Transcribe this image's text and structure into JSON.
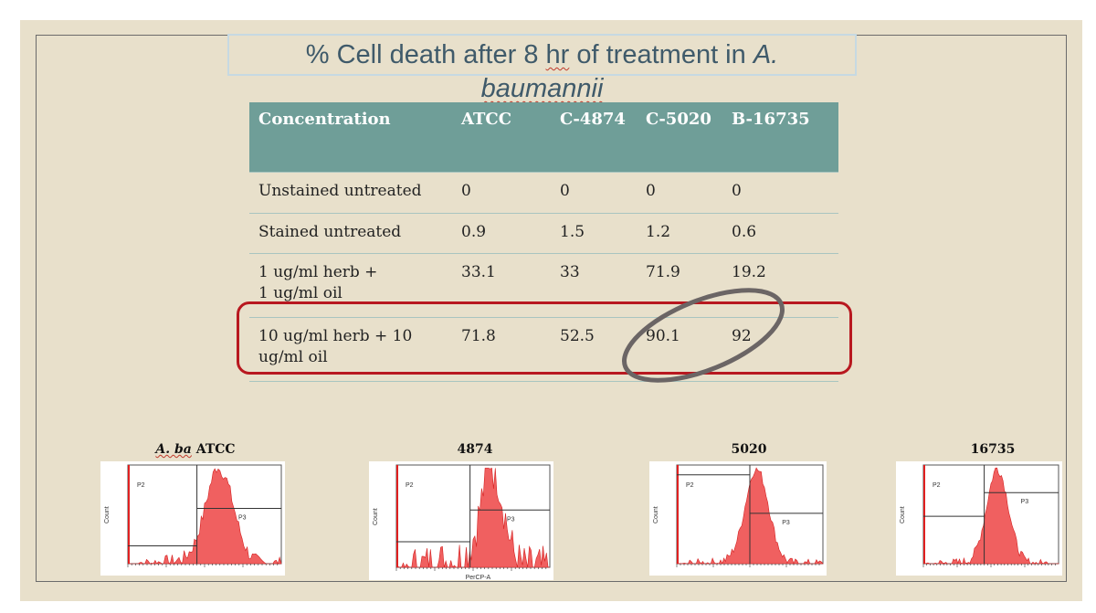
{
  "slide": {
    "title_part1": "% Cell death after 8 ",
    "title_hr": "hr",
    "title_part2": " of treatment in ",
    "title_A": "A.",
    "title_species": "baumannii"
  },
  "table": {
    "headers": [
      "Concentration",
      "ATCC",
      "C-4874",
      "C-5020",
      "B-16735"
    ],
    "rows": [
      {
        "label_line1": "Unstained untreated",
        "label_line2": "",
        "values": [
          "0",
          "0",
          "0",
          "0"
        ]
      },
      {
        "label_line1": "Stained untreated",
        "label_line2": "",
        "values": [
          "0.9",
          "1.5",
          "1.2",
          "0.6"
        ]
      },
      {
        "label_line1": "1 ug/ml herb +",
        "label_line2": "1 ug/ml oil",
        "values": [
          "33.1",
          "33",
          "71.9",
          "19.2"
        ]
      },
      {
        "label_line1": "10 ug/ml herb + 10",
        "label_line2": "ug/ml oil",
        "values": [
          "71.8",
          "52.5",
          "90.1",
          "92"
        ]
      }
    ]
  },
  "plots": [
    {
      "label_italic": "A. ba",
      "label_rest": " ATCC",
      "gate_p2": "P2",
      "gate_p3": "P3",
      "ylabel": "Count",
      "xlabel": ""
    },
    {
      "label_italic": "",
      "label_rest": "4874",
      "gate_p2": "P2",
      "gate_p3": "P3",
      "ylabel": "Count",
      "xlabel": "PerCP-A"
    },
    {
      "label_italic": "",
      "label_rest": "5020",
      "gate_p2": "P2",
      "gate_p3": "P3",
      "ylabel": "Count",
      "xlabel": ""
    },
    {
      "label_italic": "",
      "label_rest": "16735",
      "gate_p2": "P2",
      "gate_p3": "P3",
      "ylabel": "Count",
      "xlabel": ""
    }
  ],
  "colors": {
    "header_bg": "#6f9e98",
    "highlight": "#b8181f",
    "ellipse": "#6b6565",
    "histogram": "#f06060"
  }
}
